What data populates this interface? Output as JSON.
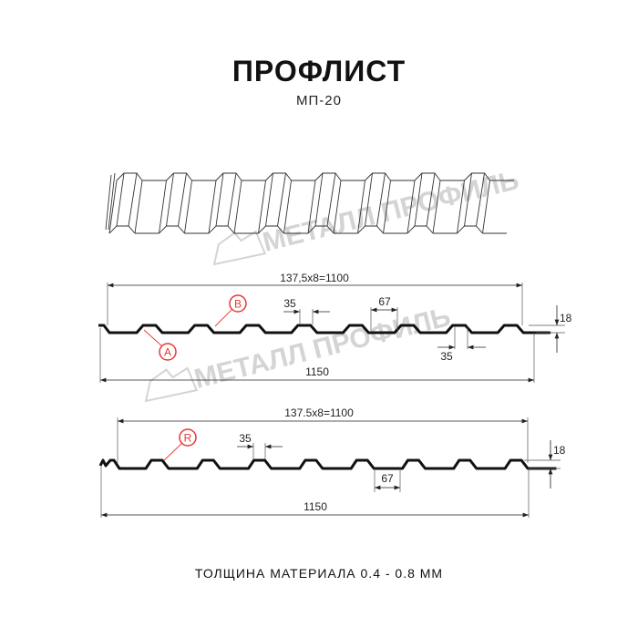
{
  "title": "ПРОФЛИСТ",
  "subtitle": "МП-20",
  "footer": "ТОЛЩИНА МАТЕРИАЛА 0.4 - 0.8 ММ",
  "watermark": "МЕТАЛЛ ПРОФИЛЬ",
  "colors": {
    "line": "#111111",
    "accent": "#e53935",
    "watermark": "#d4d4d4"
  },
  "profile_a": {
    "pitch_label": "137,5х8=1100",
    "width_label": "1150",
    "top_width_label": "35",
    "bottom_width_label": "35",
    "rib_gap_label": "67",
    "height_label": "18",
    "marker_a": "A",
    "marker_b": "B"
  },
  "profile_b": {
    "pitch_label": "137.5x8=1100",
    "width_label": "1150",
    "top_width_label": "35",
    "rib_gap_label": "67",
    "height_label": "18",
    "marker_r": "R"
  }
}
